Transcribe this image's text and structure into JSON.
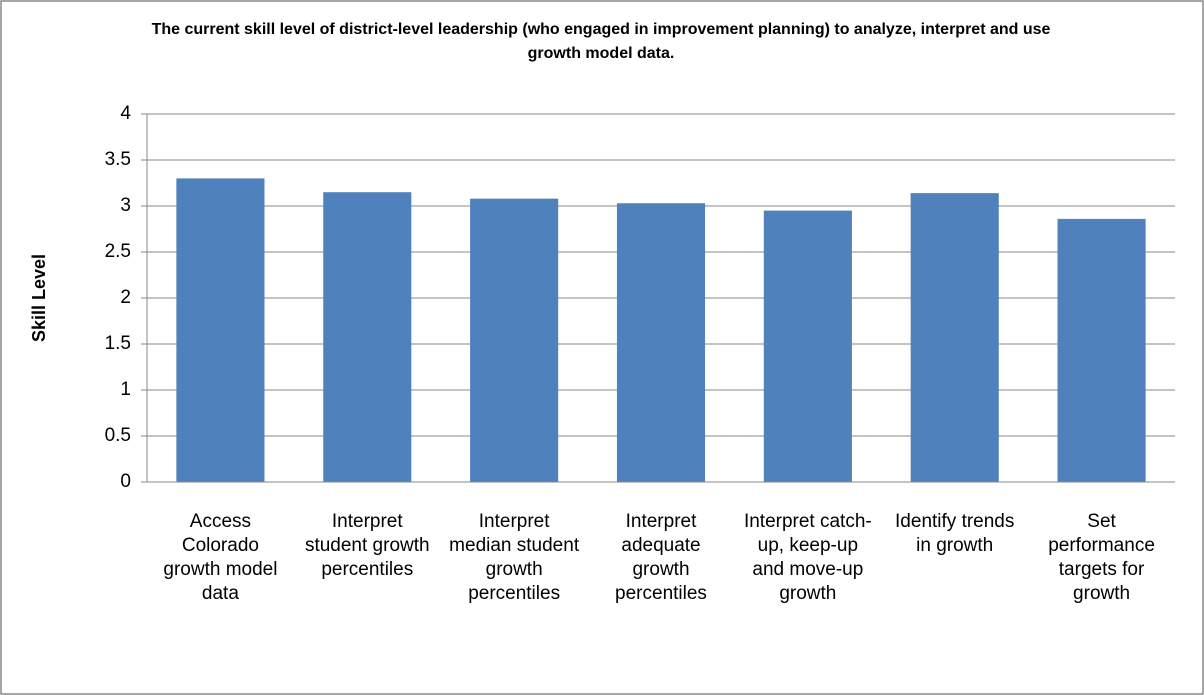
{
  "chart_data": {
    "type": "bar",
    "title": "The current skill level of district-level leadership (who engaged in improvement planning) to analyze, interpret and use growth model data.",
    "y_axis_label": "Skill Level",
    "categories": [
      "Access Colorado growth model data",
      "Interpret student growth percentiles",
      "Interpret median student growth percentiles",
      "Interpret adequate growth percentiles",
      "Interpret catch-up, keep-up and move-up growth",
      "Identify trends in growth",
      "Set performance targets for growth"
    ],
    "values": [
      3.3,
      3.15,
      3.08,
      3.03,
      2.95,
      3.14,
      2.86
    ],
    "color": "#4f81bd",
    "ylim": [
      0,
      4
    ],
    "yticks": [
      0,
      0.5,
      1,
      1.5,
      2,
      2.5,
      3,
      3.5,
      4
    ],
    "grid": true
  }
}
